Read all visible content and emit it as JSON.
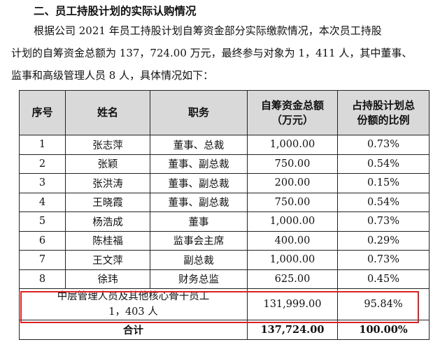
{
  "heading": "二、员工持股计划的实际认购情况",
  "paragraph": {
    "line1": "根据公司 2021 年员工持股计划自筹资金部分实际缴款情况，本次员工持股",
    "line2": "计划的自筹资金总额为 137，724.00 万元，最终参与对象为 1，411 人，其中董事、",
    "line3": "监事和高级管理人员 8 人，具体情况如下："
  },
  "table": {
    "headers": {
      "seq": "序号",
      "name": "姓名",
      "position": "职务",
      "amount_l1": "自筹资金总额",
      "amount_l2": "（万元）",
      "ratio_l1": "占持股计划总",
      "ratio_l2": "份额的比例"
    },
    "rows": [
      {
        "seq": "1",
        "name": "张志萍",
        "position": "董事、总裁",
        "amount": "1,000.00",
        "ratio": "0.73%"
      },
      {
        "seq": "2",
        "name": "张颖",
        "position": "董事、副总裁",
        "amount": "750.00",
        "ratio": "0.54%"
      },
      {
        "seq": "3",
        "name": "张洪涛",
        "position": "董事、副总裁",
        "amount": "200.00",
        "ratio": "0.15%"
      },
      {
        "seq": "4",
        "name": "王晓霞",
        "position": "董事、副总裁",
        "amount": "750.00",
        "ratio": "0.54%"
      },
      {
        "seq": "5",
        "name": "杨浩成",
        "position": "董事",
        "amount": "1,000.00",
        "ratio": "0.73%"
      },
      {
        "seq": "6",
        "name": "陈桂福",
        "position": "监事会主席",
        "amount": "400.00",
        "ratio": "0.29%"
      },
      {
        "seq": "7",
        "name": "王文萍",
        "position": "副总裁",
        "amount": "1,000.00",
        "ratio": "0.73%"
      },
      {
        "seq": "8",
        "name": "徐玮",
        "position": "财务总监",
        "amount": "625.00",
        "ratio": "0.45%"
      }
    ],
    "mid_level": {
      "label_l1": "中层管理人员及其他核心骨干员工",
      "label_l2": "1，403 人",
      "amount": "131,999.00",
      "ratio": "95.84%"
    },
    "total": {
      "label": "合计",
      "amount": "137,724.00",
      "ratio": "100.00%"
    }
  }
}
